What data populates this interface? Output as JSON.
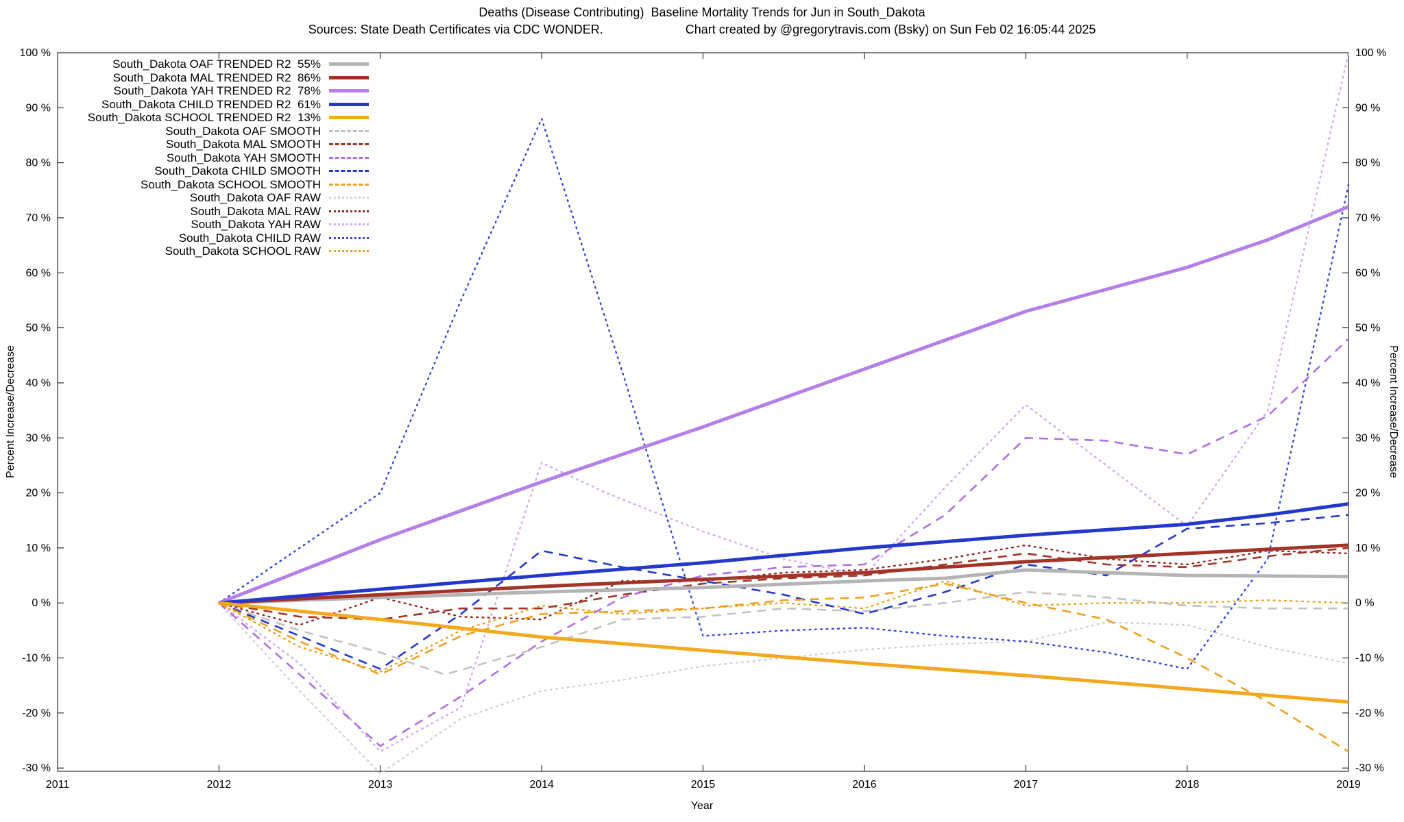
{
  "title": {
    "line1": "Deaths (Disease Contributing)  Baseline Mortality Trends for Jun in South_Dakota",
    "sources": "Sources: State Death Certificates via CDC WONDER.",
    "credit": "Chart created by @gregorytravis.com (Bsky) on Sun Feb 02 16:05:44 2025"
  },
  "axes": {
    "x_label": "Year",
    "y_label_left": "Percent Increase/Decrease",
    "y_label_right": "Percent Increase/Decrease"
  },
  "chart_data": {
    "type": "line",
    "title": "Deaths (Disease Contributing)  Baseline Mortality Trends for Jun in South_Dakota",
    "xlabel": "Year",
    "ylabel": "Percent Increase/Decrease",
    "x_range": [
      2011,
      2019
    ],
    "y_range": [
      -30.6,
      100
    ],
    "x_ticks": [
      2011,
      2012,
      2013,
      2014,
      2015,
      2016,
      2017,
      2018,
      2019
    ],
    "y_ticks": [
      100,
      90,
      80,
      70,
      60,
      50,
      40,
      30,
      20,
      10,
      0,
      -10,
      -20,
      -30
    ],
    "y_tick_suffix": " %",
    "grid": false,
    "legend_position": "top-left",
    "series": [
      {
        "key": "oaf-trended",
        "legend_label": "South_Dakota OAF TRENDED R2  55%",
        "r2": "55%",
        "color": "#b4b4b4",
        "style": "trend",
        "points": [
          [
            2012,
            0
          ],
          [
            2013,
            1
          ],
          [
            2014,
            2
          ],
          [
            2015,
            2.8
          ],
          [
            2016,
            4
          ],
          [
            2016.5,
            4.5
          ],
          [
            2017,
            6
          ],
          [
            2017.5,
            5.5
          ],
          [
            2018,
            5
          ],
          [
            2019,
            4.8
          ]
        ]
      },
      {
        "key": "mal-trended",
        "legend_label": "South_Dakota MAL TRENDED R2  86%",
        "r2": "86%",
        "color": "#a33327",
        "style": "trend",
        "points": [
          [
            2012,
            0
          ],
          [
            2013,
            1.5
          ],
          [
            2014,
            3
          ],
          [
            2015,
            4.3
          ],
          [
            2016,
            5.5
          ],
          [
            2017,
            7.5
          ],
          [
            2018,
            9
          ],
          [
            2019,
            10.5
          ]
        ]
      },
      {
        "key": "yah-trended",
        "legend_label": "South_Dakota YAH TRENDED R2  78%",
        "r2": "78%",
        "color": "#b67fe8",
        "style": "trend",
        "points": [
          [
            2012,
            0
          ],
          [
            2013,
            11.5
          ],
          [
            2014,
            22
          ],
          [
            2015,
            32
          ],
          [
            2016,
            42.5
          ],
          [
            2017,
            53
          ],
          [
            2017.5,
            57
          ],
          [
            2018,
            61
          ],
          [
            2018.5,
            66
          ],
          [
            2019,
            72
          ]
        ]
      },
      {
        "key": "child-trended",
        "legend_label": "South_Dakota CHILD TRENDED R2  61%",
        "r2": "61%",
        "color": "#2438cc",
        "style": "trend",
        "points": [
          [
            2012,
            0
          ],
          [
            2013,
            2.5
          ],
          [
            2014,
            5
          ],
          [
            2015,
            7.3
          ],
          [
            2016,
            10
          ],
          [
            2017,
            12.3
          ],
          [
            2018,
            14.3
          ],
          [
            2018.5,
            16
          ],
          [
            2019,
            18
          ]
        ]
      },
      {
        "key": "school-trended",
        "legend_label": "South_Dakota SCHOOL TRENDED R2  13%",
        "r2": "13%",
        "color": "#f4a81d",
        "style": "trend",
        "points": [
          [
            2012,
            0
          ],
          [
            2013,
            -3
          ],
          [
            2014,
            -6.2
          ],
          [
            2015,
            -8.6
          ],
          [
            2016,
            -11
          ],
          [
            2017,
            -13.2
          ],
          [
            2018,
            -15.6
          ],
          [
            2019,
            -18
          ]
        ]
      },
      {
        "key": "oaf-smooth",
        "legend_label": "South_Dakota OAF SMOOTH",
        "color": "#c2c2c2",
        "style": "smooth",
        "points": [
          [
            2012,
            0
          ],
          [
            2012.5,
            -5
          ],
          [
            2013,
            -9
          ],
          [
            2013.4,
            -13
          ],
          [
            2014,
            -8
          ],
          [
            2014.5,
            -3
          ],
          [
            2015,
            -2.5
          ],
          [
            2015.5,
            -1
          ],
          [
            2016,
            -1.5
          ],
          [
            2016.5,
            0
          ],
          [
            2017,
            2
          ],
          [
            2017.5,
            1
          ],
          [
            2018,
            -0.5
          ],
          [
            2018.5,
            -1
          ],
          [
            2019,
            -1
          ]
        ]
      },
      {
        "key": "mal-smooth",
        "legend_label": "South_Dakota MAL SMOOTH",
        "color": "#a33327",
        "style": "smooth",
        "points": [
          [
            2012,
            0
          ],
          [
            2012.5,
            -2.5
          ],
          [
            2013,
            -3
          ],
          [
            2013.5,
            -1
          ],
          [
            2014,
            -1
          ],
          [
            2014.5,
            1.5
          ],
          [
            2015,
            3.5
          ],
          [
            2015.5,
            4.5
          ],
          [
            2016,
            5
          ],
          [
            2016.5,
            7
          ],
          [
            2017,
            9
          ],
          [
            2017.5,
            7
          ],
          [
            2018,
            6.5
          ],
          [
            2018.5,
            8.5
          ],
          [
            2019,
            10
          ]
        ]
      },
      {
        "key": "yah-smooth",
        "legend_label": "South_Dakota YAH SMOOTH",
        "color": "#b26ee4",
        "style": "smooth",
        "points": [
          [
            2012,
            0
          ],
          [
            2012.5,
            -13
          ],
          [
            2013,
            -26
          ],
          [
            2013.5,
            -17
          ],
          [
            2014,
            -7
          ],
          [
            2014.5,
            1
          ],
          [
            2015,
            5
          ],
          [
            2015.5,
            6.5
          ],
          [
            2016,
            7
          ],
          [
            2016.5,
            16
          ],
          [
            2017,
            30
          ],
          [
            2017.5,
            29.5
          ],
          [
            2018,
            27
          ],
          [
            2018.5,
            34
          ],
          [
            2019,
            48
          ]
        ]
      },
      {
        "key": "child-smooth",
        "legend_label": "South_Dakota CHILD SMOOTH",
        "color": "#2438cc",
        "style": "smooth",
        "points": [
          [
            2012,
            0
          ],
          [
            2012.5,
            -6
          ],
          [
            2013,
            -12
          ],
          [
            2013.5,
            -2
          ],
          [
            2014,
            9.5
          ],
          [
            2014.5,
            6.5
          ],
          [
            2015,
            4
          ],
          [
            2015.5,
            1.5
          ],
          [
            2016,
            -2
          ],
          [
            2016.5,
            2
          ],
          [
            2017,
            7
          ],
          [
            2017.5,
            5
          ],
          [
            2018,
            13.5
          ],
          [
            2018.5,
            14.5
          ],
          [
            2019,
            16
          ]
        ]
      },
      {
        "key": "school-smooth",
        "legend_label": "South_Dakota SCHOOL SMOOTH",
        "color": "#f0a01e",
        "style": "smooth",
        "points": [
          [
            2012,
            0
          ],
          [
            2012.5,
            -7
          ],
          [
            2013,
            -13
          ],
          [
            2013.5,
            -6
          ],
          [
            2014,
            -2
          ],
          [
            2014.5,
            -1.5
          ],
          [
            2015,
            -1
          ],
          [
            2015.5,
            0.5
          ],
          [
            2016,
            1
          ],
          [
            2016.5,
            3.5
          ],
          [
            2017,
            0
          ],
          [
            2017.5,
            -3
          ],
          [
            2018,
            -10
          ],
          [
            2018.5,
            -18
          ],
          [
            2019,
            -27
          ]
        ]
      },
      {
        "key": "oaf-raw",
        "legend_label": "South_Dakota OAF RAW",
        "color": "#cfcfcf",
        "style": "raw",
        "points": [
          [
            2012,
            0
          ],
          [
            2012.5,
            -16
          ],
          [
            2013,
            -31
          ],
          [
            2013.5,
            -21
          ],
          [
            2014,
            -16
          ],
          [
            2014.5,
            -14
          ],
          [
            2015,
            -11.5
          ],
          [
            2015.5,
            -10
          ],
          [
            2016,
            -8.5
          ],
          [
            2016.5,
            -7.5
          ],
          [
            2017,
            -7
          ],
          [
            2017.5,
            -3.5
          ],
          [
            2018,
            -4
          ],
          [
            2018.5,
            -8
          ],
          [
            2019,
            -11
          ]
        ]
      },
      {
        "key": "mal-raw",
        "legend_label": "South_Dakota MAL RAW",
        "color": "#8f251a",
        "style": "raw",
        "points": [
          [
            2012,
            0
          ],
          [
            2012.5,
            -4
          ],
          [
            2013,
            1
          ],
          [
            2013.5,
            -2.5
          ],
          [
            2014,
            -3
          ],
          [
            2014.5,
            4
          ],
          [
            2015,
            4
          ],
          [
            2015.5,
            5.5
          ],
          [
            2016,
            6
          ],
          [
            2016.5,
            8
          ],
          [
            2017,
            10.5
          ],
          [
            2017.5,
            8
          ],
          [
            2018,
            7
          ],
          [
            2018.5,
            9.5
          ],
          [
            2019,
            9
          ]
        ]
      },
      {
        "key": "yah-raw",
        "legend_label": "South_Dakota YAH RAW",
        "color": "#d0a8f4",
        "style": "raw",
        "points": [
          [
            2012,
            0
          ],
          [
            2012.5,
            -11
          ],
          [
            2013,
            -27
          ],
          [
            2013.5,
            -19
          ],
          [
            2014,
            25.5
          ],
          [
            2014.4,
            20
          ],
          [
            2015,
            13
          ],
          [
            2015.5,
            8
          ],
          [
            2016,
            5
          ],
          [
            2016.5,
            21
          ],
          [
            2017,
            36
          ],
          [
            2017.5,
            25
          ],
          [
            2018,
            14
          ],
          [
            2018.5,
            35
          ],
          [
            2019,
            100
          ]
        ]
      },
      {
        "key": "child-raw",
        "legend_label": "South_Dakota CHILD RAW",
        "color": "#3344dd",
        "style": "raw",
        "points": [
          [
            2012,
            0
          ],
          [
            2013,
            20
          ],
          [
            2013.5,
            55
          ],
          [
            2014,
            88
          ],
          [
            2014.5,
            42
          ],
          [
            2015,
            -6
          ],
          [
            2015.5,
            -5
          ],
          [
            2016,
            -4.5
          ],
          [
            2016.5,
            -6
          ],
          [
            2017,
            -7
          ],
          [
            2017.5,
            -9
          ],
          [
            2018,
            -12
          ],
          [
            2018.5,
            8
          ],
          [
            2019,
            76
          ]
        ]
      },
      {
        "key": "school-raw",
        "legend_label": "South_Dakota SCHOOL RAW",
        "color": "#e8a51e",
        "style": "raw",
        "points": [
          [
            2012,
            0
          ],
          [
            2012.5,
            -8
          ],
          [
            2013,
            -12.5
          ],
          [
            2013.5,
            -5
          ],
          [
            2014,
            -0.5
          ],
          [
            2014.5,
            -2
          ],
          [
            2015,
            -1
          ],
          [
            2015.5,
            0
          ],
          [
            2016,
            -1
          ],
          [
            2016.5,
            4
          ],
          [
            2017,
            -0.5
          ],
          [
            2017.5,
            0
          ],
          [
            2018,
            0
          ],
          [
            2018.5,
            0.5
          ],
          [
            2019,
            0
          ]
        ]
      }
    ]
  }
}
